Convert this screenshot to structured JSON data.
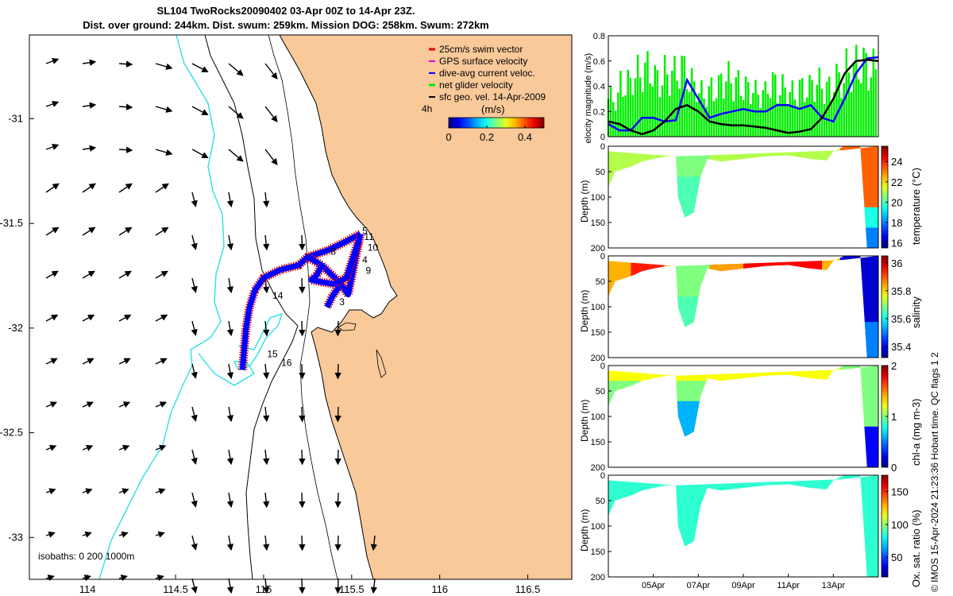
{
  "title_line1": "SL104 TwoRocks20090402 03-Apr 00Z to 14-Apr 23Z.",
  "title_line2": "Dist. over ground: 244km. Dist. swum: 259km. Mission DOG: 258km. Swum: 272km",
  "credit": "© IMOS 15-Apr-2024 21:23:36 Hobart time. QC flags 1  2",
  "colors": {
    "land": "#f9c99a",
    "isobath200": "#2de0e8",
    "track": "#0000ff",
    "swim": "#e00000",
    "gps": "#e000e0",
    "net": "#00ee00",
    "geo": "#000000",
    "ocean": "#ffffff"
  },
  "chart_data": [
    {
      "id": "map",
      "type": "scatter",
      "title": "glider track map",
      "x_ticks": [
        "114",
        "114.5",
        "115",
        "115.5",
        "116",
        "116.5"
      ],
      "x_tick_values": [
        114,
        114.5,
        115,
        115.5,
        116,
        116.5
      ],
      "y_ticks": [
        "-31",
        "-31.5",
        "-32",
        "-32.5",
        "-33"
      ],
      "y_tick_values": [
        -31,
        -31.5,
        -32,
        -32.5,
        -33
      ],
      "xlim": [
        113.67,
        116.75
      ],
      "ylim": [
        -33.2,
        -30.6
      ],
      "legend": {
        "entries": [
          "25cm/s swim vector",
          "GPS surface velocity",
          "dive-avg current veloc.",
          "net glider velocity",
          "sfc geo. vel. 14-Apr-2009"
        ],
        "placement": "top-right"
      },
      "colorbar": {
        "label": "(m/s)",
        "ticks": [
          "0",
          "0.2",
          "0.4"
        ],
        "tick_values": [
          0,
          0.2,
          0.4
        ],
        "range": [
          0,
          0.5
        ],
        "note": "4h"
      },
      "isobath_label": "isobaths: 0   200  1000m",
      "track_labels": [
        "5",
        "11",
        "10",
        "8",
        "4",
        "9",
        "14",
        "3",
        "15",
        "16"
      ],
      "track": [
        [
          115.55,
          -31.55
        ],
        [
          115.46,
          -31.59
        ],
        [
          115.36,
          -31.63
        ],
        [
          115.25,
          -31.66
        ],
        [
          115.2,
          -31.7
        ],
        [
          115.1,
          -31.72
        ],
        [
          115.0,
          -31.76
        ],
        [
          114.95,
          -31.82
        ],
        [
          114.92,
          -31.9
        ],
        [
          114.9,
          -32.0
        ],
        [
          114.89,
          -32.1
        ],
        [
          114.88,
          -32.2
        ]
      ],
      "track_loops": [
        [
          [
            115.25,
            -31.66
          ],
          [
            115.33,
            -31.7
          ],
          [
            115.43,
            -31.78
          ],
          [
            115.48,
            -31.84
          ],
          [
            115.55,
            -31.55
          ]
        ],
        [
          [
            115.33,
            -31.7
          ],
          [
            115.3,
            -31.75
          ],
          [
            115.27,
            -31.77
          ],
          [
            115.33,
            -31.78
          ],
          [
            115.4,
            -31.79
          ],
          [
            115.47,
            -31.76
          ],
          [
            115.54,
            -31.58
          ]
        ],
        [
          [
            115.43,
            -31.8
          ],
          [
            115.39,
            -31.85
          ],
          [
            115.36,
            -31.9
          ]
        ]
      ]
    },
    {
      "id": "velocity",
      "type": "line",
      "ylabel": "velocity magnitude (m/s)",
      "y_ticks": [
        "0",
        "0.2",
        "0.4",
        "0.6",
        "0.8"
      ],
      "y_tick_values": [
        0,
        0.2,
        0.4,
        0.6,
        0.8
      ],
      "ylim": [
        0,
        0.8
      ],
      "x": [
        0,
        0.5,
        1,
        1.5,
        2,
        2.5,
        3,
        3.5,
        4,
        4.5,
        5,
        5.5,
        6,
        6.5,
        7,
        7.5,
        8,
        8.5,
        9,
        9.5,
        10,
        10.5,
        11,
        11.5,
        12
      ],
      "series": [
        {
          "name": "dive-avg current veloc.",
          "values": [
            0.1,
            0.05,
            0.05,
            0.15,
            0.15,
            0.12,
            0.13,
            0.45,
            0.3,
            0.15,
            0.18,
            0.2,
            0.22,
            0.2,
            0.2,
            0.25,
            0.25,
            0.22,
            0.25,
            0.15,
            0.12,
            0.3,
            0.5,
            0.62,
            0.63
          ]
        },
        {
          "name": "sfc geo. vel. 14-Apr-2009",
          "values": [
            0.12,
            0.1,
            0.05,
            0.02,
            0.05,
            0.12,
            0.22,
            0.25,
            0.2,
            0.12,
            0.1,
            0.09,
            0.09,
            0.08,
            0.07,
            0.05,
            0.03,
            0.04,
            0.06,
            0.15,
            0.3,
            0.5,
            0.6,
            0.61,
            0.6
          ]
        },
        {
          "name": "net glider velocity",
          "values": [
            0.4,
            0.55,
            0.65,
            0.7,
            0.6,
            0.65,
            0.7,
            0.55,
            0.45,
            0.5,
            0.6,
            0.55,
            0.5,
            0.45,
            0.55,
            0.5,
            0.45,
            0.5,
            0.55,
            0.5,
            0.6,
            0.7,
            0.75,
            0.7,
            0.65
          ]
        }
      ]
    },
    {
      "id": "temperature",
      "type": "heatmap",
      "ylabel": "Depth (m)",
      "clabel": "temperature (°C)",
      "y_ticks": [
        "0",
        "50",
        "100",
        "150",
        "200"
      ],
      "y_tick_values": [
        0,
        50,
        100,
        150,
        200
      ],
      "ylim": [
        0,
        200
      ],
      "c_ticks": [
        "16",
        "18",
        "20",
        "22",
        "24"
      ],
      "c_tick_values": [
        16,
        18,
        20,
        22,
        24
      ],
      "clim": [
        15.5,
        25.5
      ]
    },
    {
      "id": "salinity",
      "type": "heatmap",
      "ylabel": "Depth (m)",
      "clabel": "salinity",
      "y_ticks": [
        "0",
        "50",
        "100",
        "150",
        "200"
      ],
      "y_tick_values": [
        0,
        50,
        100,
        150,
        200
      ],
      "ylim": [
        0,
        200
      ],
      "c_ticks": [
        "35.4",
        "35.6",
        "35.8",
        "36"
      ],
      "c_tick_values": [
        35.4,
        35.6,
        35.8,
        36
      ],
      "clim": [
        35.32,
        36.05
      ]
    },
    {
      "id": "chla",
      "type": "heatmap",
      "ylabel": "Depth (m)",
      "clabel": "chl-a (mg m-3)",
      "y_ticks": [
        "0",
        "50",
        "100",
        "150",
        "200"
      ],
      "y_tick_values": [
        0,
        50,
        100,
        150,
        200
      ],
      "ylim": [
        0,
        200
      ],
      "c_ticks": [
        "0",
        "1",
        "2"
      ],
      "c_tick_values": [
        0,
        1,
        2
      ],
      "clim": [
        0,
        2
      ]
    },
    {
      "id": "oxygen",
      "type": "heatmap",
      "ylabel": "Depth (m)",
      "clabel": "Ox. sat. ratio (%)",
      "y_ticks": [
        "0",
        "50",
        "100",
        "150",
        "200"
      ],
      "y_tick_values": [
        0,
        50,
        100,
        150,
        200
      ],
      "ylim": [
        0,
        200
      ],
      "c_ticks": [
        "50",
        "100",
        "150"
      ],
      "c_tick_values": [
        50,
        100,
        150
      ],
      "clim": [
        20,
        175
      ],
      "x_ticks": [
        "05Apr",
        "07Apr",
        "09Apr",
        "11Apr",
        "13Apr"
      ]
    }
  ]
}
